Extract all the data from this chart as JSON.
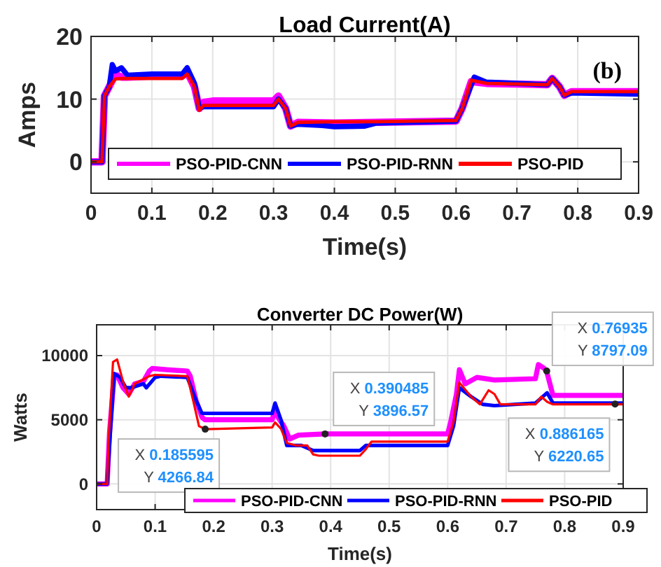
{
  "chart_data": [
    {
      "type": "line",
      "title": "Load Current(A)",
      "xlabel": "Time(s)",
      "ylabel": "Amps",
      "annotations": [
        "(b)"
      ],
      "xlim": [
        0,
        0.9
      ],
      "xticks": [
        0,
        0.1,
        0.2,
        0.3,
        0.4,
        0.5,
        0.6,
        0.7,
        0.8,
        0.9
      ],
      "ylim": [
        -5,
        20
      ],
      "yticks": [
        0,
        10,
        20
      ],
      "grid": true,
      "legend": "bottom",
      "series": [
        {
          "name": "PSO-PID-CNN",
          "color": "#ff00ff",
          "x": [
            0,
            0.018,
            0.022,
            0.03,
            0.04,
            0.05,
            0.06,
            0.1,
            0.15,
            0.158,
            0.17,
            0.178,
            0.185,
            0.2,
            0.3,
            0.308,
            0.32,
            0.328,
            0.34,
            0.4,
            0.47,
            0.6,
            0.61,
            0.625,
            0.65,
            0.75,
            0.758,
            0.77,
            0.778,
            0.79,
            0.9
          ],
          "values": [
            0,
            0,
            10.5,
            12,
            14,
            13.5,
            13.5,
            13.7,
            13.7,
            14.3,
            12,
            8.5,
            9.5,
            9.7,
            9.7,
            10.5,
            8.5,
            5.7,
            6.3,
            6.2,
            6.3,
            6.5,
            8.5,
            12.8,
            12.5,
            12.3,
            13.3,
            12,
            10.6,
            11.2,
            11.2
          ]
        },
        {
          "name": "PSO-PID-RNN",
          "color": "#0000ff",
          "x": [
            0,
            0.018,
            0.022,
            0.03,
            0.035,
            0.04,
            0.05,
            0.06,
            0.1,
            0.15,
            0.158,
            0.17,
            0.178,
            0.185,
            0.2,
            0.3,
            0.308,
            0.32,
            0.328,
            0.34,
            0.38,
            0.4,
            0.45,
            0.47,
            0.6,
            0.61,
            0.63,
            0.65,
            0.75,
            0.758,
            0.77,
            0.778,
            0.79,
            0.9
          ],
          "values": [
            0,
            0,
            10.5,
            12,
            15.5,
            14.5,
            15,
            13.8,
            14,
            14,
            15,
            12.5,
            8.5,
            8.8,
            8.8,
            8.8,
            10,
            8.5,
            5.7,
            6,
            5.8,
            5.6,
            5.7,
            6.2,
            6.5,
            8.5,
            13.5,
            12.7,
            12.3,
            13.3,
            12,
            10.6,
            11,
            10.8
          ]
        },
        {
          "name": "PSO-PID",
          "color": "#ff0000",
          "x": [
            0,
            0.018,
            0.022,
            0.03,
            0.04,
            0.05,
            0.06,
            0.1,
            0.15,
            0.158,
            0.17,
            0.178,
            0.185,
            0.2,
            0.3,
            0.308,
            0.32,
            0.328,
            0.34,
            0.4,
            0.47,
            0.6,
            0.61,
            0.625,
            0.65,
            0.75,
            0.758,
            0.77,
            0.778,
            0.79,
            0.9
          ],
          "values": [
            0,
            0,
            10.5,
            12,
            13.2,
            13.3,
            13.3,
            13.3,
            13.3,
            14,
            12,
            8.2,
            9,
            9,
            9,
            10,
            8.5,
            5.7,
            6.3,
            6.4,
            6.4,
            6.6,
            8.5,
            13,
            12.5,
            12.3,
            13.3,
            12,
            10.6,
            11.2,
            11.2
          ]
        }
      ]
    },
    {
      "type": "line",
      "title": "Converter DC Power(W)",
      "xlabel": "Time(s)",
      "ylabel": "Watts",
      "xlim": [
        0,
        0.9
      ],
      "xticks": [
        0,
        0.1,
        0.2,
        0.3,
        0.4,
        0.5,
        0.6,
        0.7,
        0.8,
        0.9
      ],
      "ylim": [
        -2000,
        12400
      ],
      "yticks": [
        0,
        5000,
        10000
      ],
      "grid": true,
      "legend": "bottom",
      "annotations": [
        {
          "text": "X 0.185595\nY 4266.84",
          "x": 0.185595,
          "y": 4266.84
        },
        {
          "text": "X 0.390485\nY 3896.57",
          "x": 0.390485,
          "y": 3896.57
        },
        {
          "text": "X 0.76935\nY 8797.09",
          "x": 0.76935,
          "y": 8797.09
        },
        {
          "text": "X 0.886165\nY 6220.65",
          "x": 0.886165,
          "y": 6220.65
        }
      ],
      "series": [
        {
          "name": "PSO-PID-CNN",
          "color": "#ff00ff",
          "x": [
            0,
            0.018,
            0.022,
            0.03,
            0.035,
            0.045,
            0.055,
            0.065,
            0.08,
            0.09,
            0.095,
            0.12,
            0.155,
            0.16,
            0.17,
            0.18,
            0.185,
            0.3,
            0.305,
            0.31,
            0.32,
            0.33,
            0.345,
            0.39,
            0.6,
            0.605,
            0.615,
            0.62,
            0.63,
            0.65,
            0.68,
            0.75,
            0.755,
            0.765,
            0.769,
            0.78,
            0.9
          ],
          "values": [
            0,
            0,
            4000,
            8500,
            8500,
            7500,
            7000,
            7800,
            8000,
            8800,
            9000,
            8900,
            8800,
            8400,
            6500,
            5200,
            5000,
            5000,
            5800,
            5200,
            4500,
            3500,
            3800,
            3900,
            3900,
            4800,
            7000,
            8900,
            7800,
            8300,
            8100,
            8200,
            9300,
            9000,
            8800,
            6900,
            6900
          ]
        },
        {
          "name": "PSO-PID-RNN",
          "color": "#0000ff",
          "x": [
            0,
            0.018,
            0.022,
            0.03,
            0.04,
            0.05,
            0.06,
            0.08,
            0.085,
            0.1,
            0.11,
            0.155,
            0.17,
            0.18,
            0.3,
            0.305,
            0.315,
            0.325,
            0.35,
            0.37,
            0.45,
            0.46,
            0.6,
            0.61,
            0.62,
            0.64,
            0.66,
            0.68,
            0.75,
            0.77,
            0.78,
            0.9
          ],
          "values": [
            0,
            0,
            3000,
            8600,
            8300,
            7500,
            7500,
            7800,
            7500,
            8300,
            8400,
            8300,
            6500,
            5500,
            5500,
            6300,
            5000,
            3000,
            3000,
            2600,
            2600,
            3000,
            3000,
            4500,
            7500,
            6800,
            6200,
            6100,
            6300,
            7100,
            6300,
            6300
          ]
        },
        {
          "name": "PSO-PID",
          "color": "#ff0000",
          "x": [
            0,
            0.018,
            0.02,
            0.028,
            0.035,
            0.045,
            0.055,
            0.065,
            0.09,
            0.1,
            0.155,
            0.165,
            0.175,
            0.186,
            0.3,
            0.305,
            0.315,
            0.325,
            0.34,
            0.36,
            0.37,
            0.38,
            0.45,
            0.46,
            0.47,
            0.6,
            0.61,
            0.62,
            0.64,
            0.655,
            0.67,
            0.68,
            0.69,
            0.75,
            0.76,
            0.77,
            0.78,
            0.886,
            0.9
          ],
          "values": [
            0,
            0,
            3000,
            9500,
            9700,
            8000,
            6800,
            7800,
            8400,
            8500,
            8400,
            6500,
            4500,
            4270,
            4400,
            4800,
            4300,
            3200,
            3000,
            3000,
            2300,
            2200,
            2200,
            2700,
            3300,
            3300,
            4800,
            7900,
            6800,
            6200,
            7300,
            7000,
            6200,
            6200,
            6800,
            6400,
            6200,
            6220,
            6200
          ]
        }
      ]
    }
  ]
}
